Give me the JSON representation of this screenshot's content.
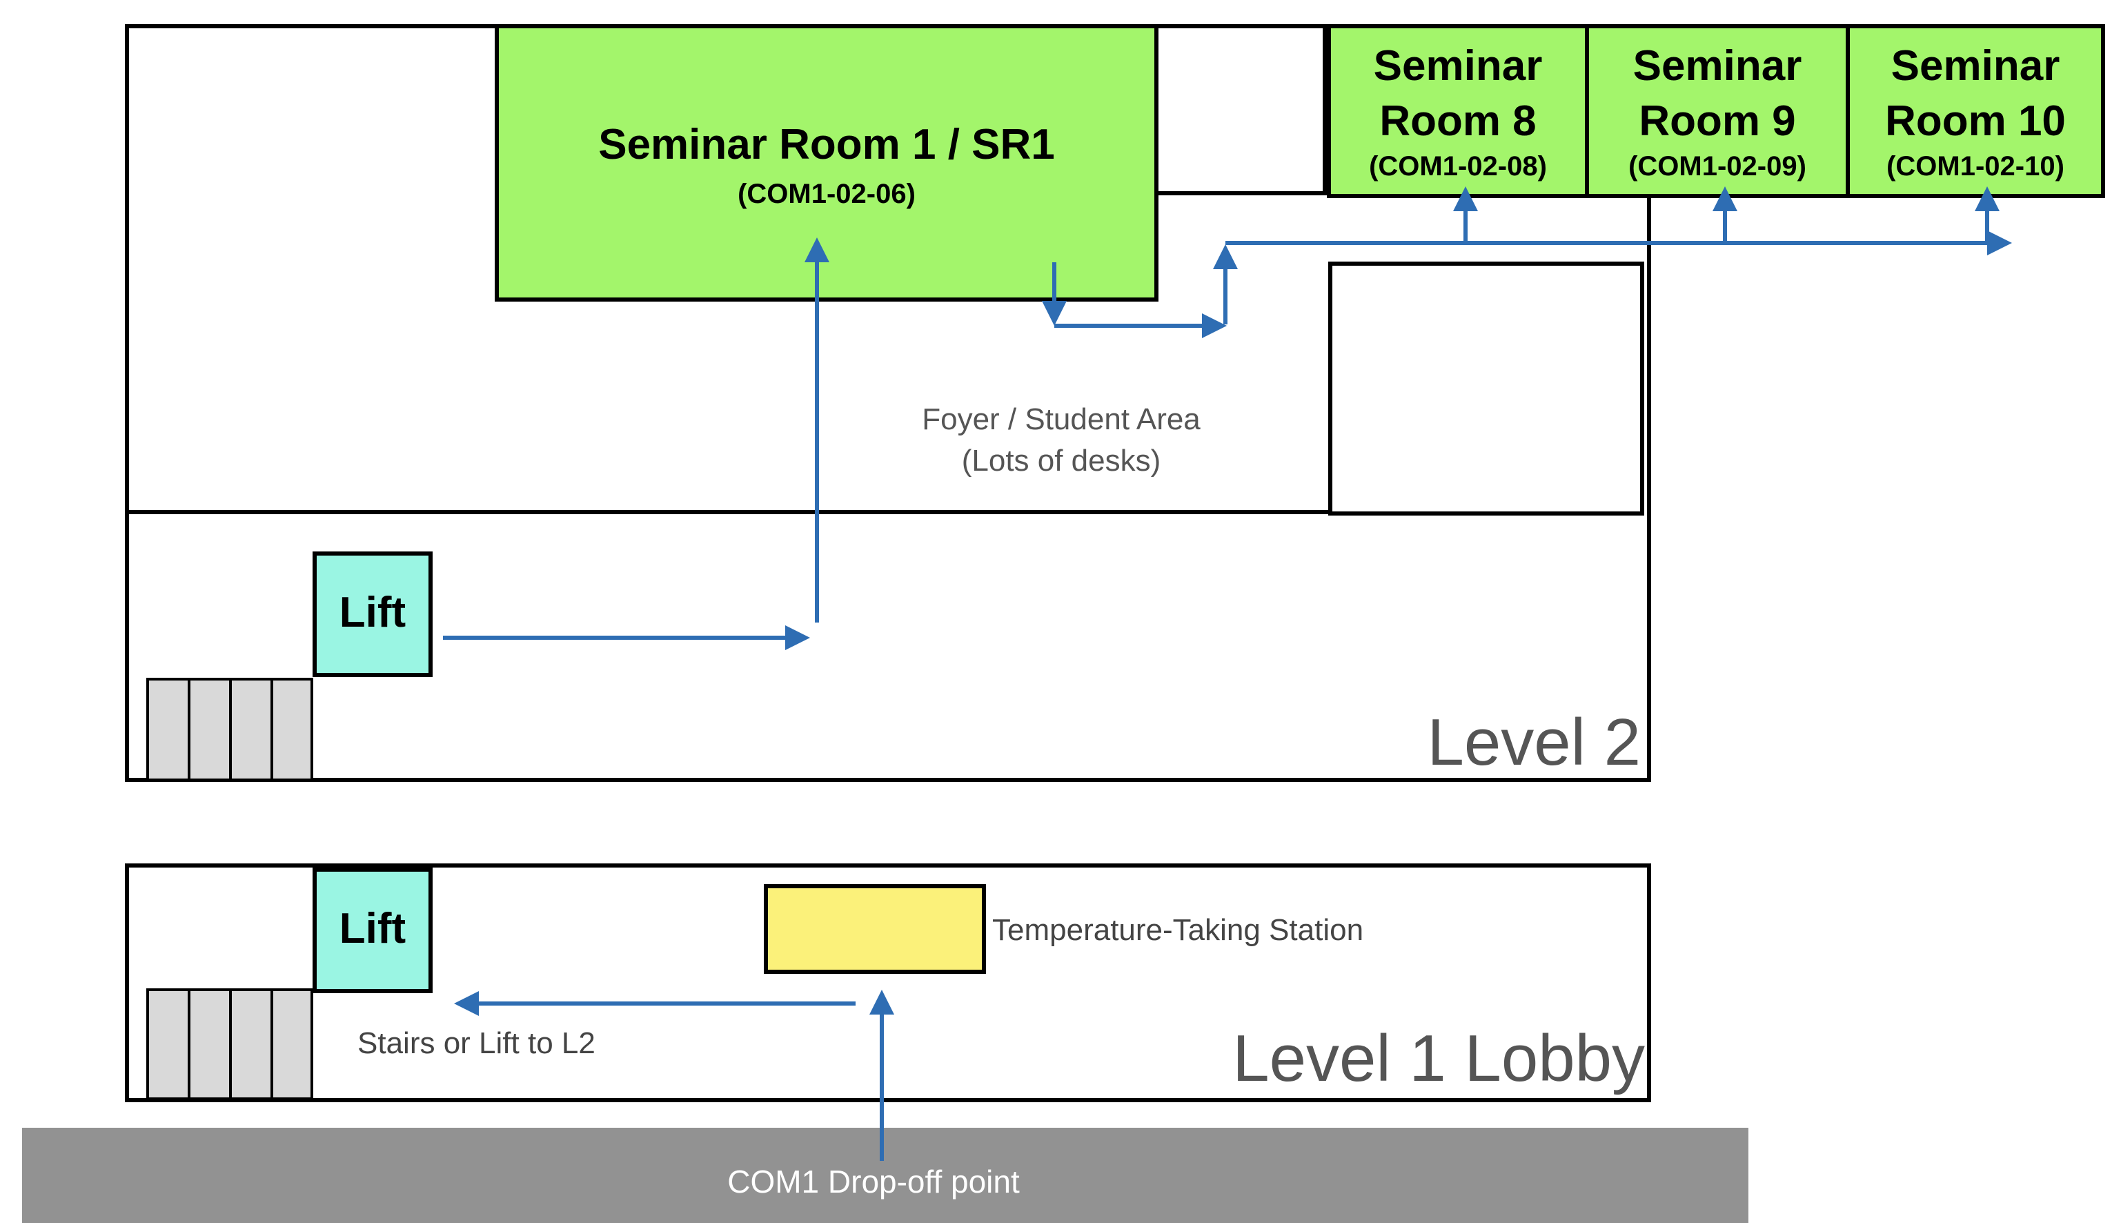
{
  "colors": {
    "seminar_room": "#a3f56b",
    "lift": "#9af5e3",
    "temperature_station": "#fbf17a",
    "drop_off_road": "#929292",
    "route": "#2e6db3",
    "stairs": "#d9d9d9",
    "muted_text": "#555555"
  },
  "level2": {
    "label": "Level 2",
    "foyer_line1": "Foyer / Student Area",
    "foyer_line2": "(Lots of desks)",
    "lift_label": "Lift",
    "sr1": {
      "name": "Seminar Room 1 / SR1",
      "code": "(COM1-02-06)"
    },
    "sr8": {
      "line1": "Seminar",
      "line2": "Room 8",
      "code": "(COM1-02-08)"
    },
    "sr9": {
      "line1": "Seminar",
      "line2": "Room 9",
      "code": "(COM1-02-09)"
    },
    "sr10": {
      "line1": "Seminar",
      "line2": "Room 10",
      "code": "(COM1-02-10)"
    }
  },
  "level1": {
    "label": "Level 1 Lobby",
    "lift_label": "Lift",
    "temperature_station_label": "Temperature-Taking Station",
    "stairs_lift_label": "Stairs or Lift to L2"
  },
  "drop_off": {
    "label": "COM1 Drop-off point"
  },
  "icons": {
    "arrow": "arrow-icon",
    "stairs": "stairs-icon"
  }
}
